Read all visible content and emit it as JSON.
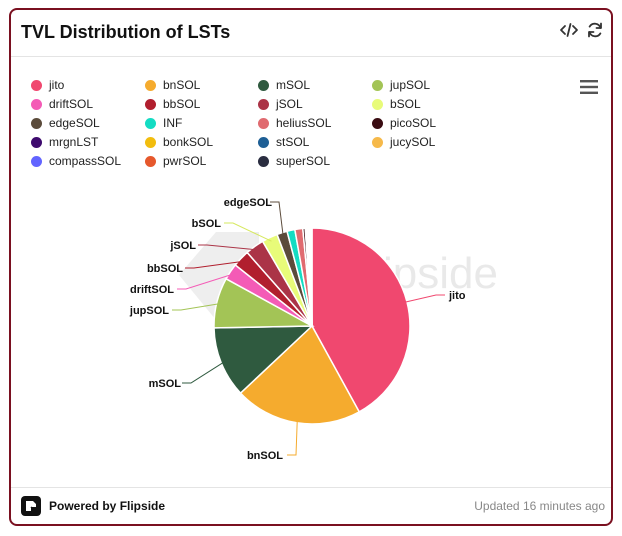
{
  "card": {
    "title": "TVL Distribution of LSTs",
    "footer_brand": "Powered by Flipside",
    "footer_updated": "Updated 16 minutes ago"
  },
  "icons": {
    "embed": "code-icon",
    "refresh": "refresh-icon",
    "menu": "hamburger-menu-icon",
    "brand": "flipside-logo-icon"
  },
  "legend": [
    {
      "label": "jito",
      "color": "#f0486f"
    },
    {
      "label": "bnSOL",
      "color": "#f5ab2e"
    },
    {
      "label": "mSOL",
      "color": "#2f5a3f"
    },
    {
      "label": "jupSOL",
      "color": "#a3c456"
    },
    {
      "label": "driftSOL",
      "color": "#f45bb6"
    },
    {
      "label": "bbSOL",
      "color": "#b11f2e"
    },
    {
      "label": "jSOL",
      "color": "#ab3447"
    },
    {
      "label": "bSOL",
      "color": "#e8fb79"
    },
    {
      "label": "edgeSOL",
      "color": "#5b4b3b"
    },
    {
      "label": "INF",
      "color": "#14dcc3"
    },
    {
      "label": "heliusSOL",
      "color": "#e06b70"
    },
    {
      "label": "picoSOL",
      "color": "#3a0c12"
    },
    {
      "label": "mrgnLST",
      "color": "#3e0a6e"
    },
    {
      "label": "bonkSOL",
      "color": "#f2bd0e"
    },
    {
      "label": "stSOL",
      "color": "#1e5f95"
    },
    {
      "label": "jucySOL",
      "color": "#f6b94a"
    },
    {
      "label": "compassSOL",
      "color": "#6264ff"
    },
    {
      "label": "pwrSOL",
      "color": "#e6582c"
    },
    {
      "label": "superSOL",
      "color": "#2a2d40"
    }
  ],
  "chart_data": {
    "type": "pie",
    "title": "TVL Distribution of LSTs",
    "slices": [
      {
        "label": "jito",
        "value": 42.0,
        "color": "#f0486f"
      },
      {
        "label": "bnSOL",
        "value": 21.0,
        "color": "#f5ab2e"
      },
      {
        "label": "mSOL",
        "value": 11.7,
        "color": "#2f5a3f"
      },
      {
        "label": "jupSOL",
        "value": 8.3,
        "color": "#a3c456"
      },
      {
        "label": "driftSOL",
        "value": 2.7,
        "color": "#f45bb6"
      },
      {
        "label": "bbSOL",
        "value": 2.8,
        "color": "#b11f2e"
      },
      {
        "label": "jSOL",
        "value": 3.1,
        "color": "#ab3447"
      },
      {
        "label": "bSOL",
        "value": 2.6,
        "color": "#e8fb79"
      },
      {
        "label": "edgeSOL",
        "value": 1.7,
        "color": "#5b4b3b"
      },
      {
        "label": "INF",
        "value": 1.3,
        "color": "#14dcc3"
      },
      {
        "label": "heliusSOL",
        "value": 1.3,
        "color": "#e06b70"
      },
      {
        "label": "picoSOL",
        "value": 0.4,
        "color": "#3a0c12"
      },
      {
        "label": "mrgnLST",
        "value": 0.2,
        "color": "#3e0a6e"
      },
      {
        "label": "bonkSOL",
        "value": 0.2,
        "color": "#f2bd0e"
      },
      {
        "label": "stSOL",
        "value": 0.2,
        "color": "#1e5f95"
      },
      {
        "label": "jucySOL",
        "value": 0.2,
        "color": "#f6b94a"
      },
      {
        "label": "compassSOL",
        "value": 0.1,
        "color": "#6264ff"
      },
      {
        "label": "pwrSOL",
        "value": 0.1,
        "color": "#e6582c"
      },
      {
        "label": "superSOL",
        "value": 0.1,
        "color": "#2a2d40"
      }
    ],
    "labeled_slices": [
      "jito",
      "bnSOL",
      "mSOL",
      "jupSOL",
      "driftSOL",
      "bbSOL",
      "jSOL",
      "bSOL",
      "edgeSOL"
    ],
    "watermark": "flipside"
  }
}
